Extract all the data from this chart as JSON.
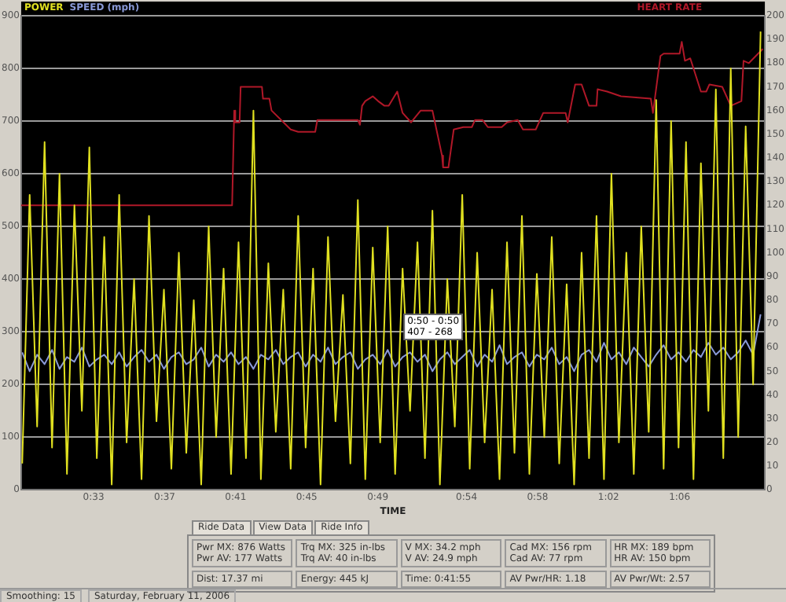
{
  "chart_data": {
    "type": "line",
    "xlabel": "TIME",
    "x": [
      0.483,
      0.49,
      0.497,
      0.504,
      0.511,
      0.518,
      0.525,
      0.532,
      0.539,
      0.546,
      0.553,
      0.56,
      0.567,
      0.574,
      0.581,
      0.588,
      0.595,
      0.602,
      0.609,
      0.616,
      0.623,
      0.63,
      0.637,
      0.644,
      0.651,
      0.658,
      0.665,
      0.672,
      0.679,
      0.686,
      0.693,
      0.7,
      0.707,
      0.714,
      0.721,
      0.728,
      0.735,
      0.742,
      0.749,
      0.756,
      0.763,
      0.77,
      0.777,
      0.784,
      0.791,
      0.798,
      0.805,
      0.812,
      0.819,
      0.826,
      0.833,
      0.84,
      0.847,
      0.854,
      0.861,
      0.868,
      0.875,
      0.882,
      0.889,
      0.896,
      0.903,
      0.91,
      0.917,
      0.924,
      0.931,
      0.938,
      0.945,
      0.952,
      0.959,
      0.966,
      0.973,
      0.98,
      0.987,
      0.994,
      1.001,
      1.008,
      1.015,
      1.022,
      1.029,
      1.036,
      1.043,
      1.05,
      1.057,
      1.064,
      1.071,
      1.078,
      1.085,
      1.092,
      1.099,
      1.106,
      1.113,
      1.12,
      1.127,
      1.134,
      1.141,
      1.148,
      1.155,
      1.162,
      1.169,
      1.176
    ],
    "series": [
      {
        "name": "POWER",
        "color": "#e0e020",
        "values": [
          50,
          560,
          120,
          660,
          80,
          600,
          30,
          540,
          150,
          650,
          60,
          480,
          10,
          560,
          90,
          400,
          20,
          520,
          130,
          380,
          40,
          450,
          70,
          360,
          10,
          500,
          100,
          420,
          30,
          470,
          60,
          720,
          20,
          430,
          110,
          380,
          40,
          520,
          80,
          420,
          10,
          480,
          130,
          370,
          50,
          550,
          20,
          460,
          90,
          500,
          30,
          420,
          150,
          470,
          60,
          530,
          10,
          400,
          120,
          560,
          40,
          450,
          90,
          380,
          20,
          470,
          70,
          520,
          30,
          410,
          100,
          480,
          50,
          390,
          10,
          450,
          60,
          520,
          20,
          600,
          90,
          450,
          30,
          500,
          110,
          740,
          40,
          700,
          80,
          660,
          20,
          620,
          150,
          760,
          60,
          800,
          100,
          690,
          200,
          870
        ]
      },
      {
        "name": "SPEED (mph)",
        "color": "#8a9ad8",
        "axis": "y2",
        "values": [
          58,
          50,
          57,
          53,
          59,
          51,
          56,
          54,
          60,
          52,
          55,
          57,
          53,
          58,
          52,
          56,
          59,
          54,
          57,
          51,
          56,
          58,
          53,
          55,
          60,
          52,
          57,
          54,
          58,
          53,
          56,
          51,
          57,
          55,
          59,
          53,
          56,
          58,
          52,
          57,
          54,
          60,
          53,
          56,
          58,
          51,
          55,
          57,
          53,
          59,
          52,
          56,
          58,
          54,
          57,
          50,
          55,
          58,
          53,
          56,
          59,
          52,
          57,
          54,
          61,
          53,
          56,
          58,
          52,
          57,
          55,
          60,
          53,
          56,
          50,
          57,
          59,
          54,
          62,
          55,
          58,
          53,
          60,
          56,
          52,
          57,
          61,
          55,
          58,
          54,
          59,
          56,
          62,
          57,
          60,
          55,
          58,
          63,
          57,
          74
        ]
      },
      {
        "name": "HEART RATE",
        "color": "#b01828",
        "axis": "y2",
        "x": [
          0.482,
          0.68,
          0.682,
          0.683,
          0.687,
          0.688,
          0.708,
          0.709,
          0.715,
          0.717,
          0.735,
          0.742,
          0.758,
          0.76,
          0.798,
          0.8,
          0.802,
          0.805,
          0.812,
          0.817,
          0.823,
          0.827,
          0.835,
          0.84,
          0.848,
          0.857,
          0.868,
          0.877,
          0.878,
          0.883,
          0.888,
          0.897,
          0.905,
          0.908,
          0.915,
          0.92,
          0.933,
          0.938,
          0.948,
          0.953,
          0.965,
          0.972,
          0.993,
          0.995,
          1.002,
          1.008,
          1.015,
          1.022,
          1.023,
          1.032,
          1.045,
          1.073,
          1.075,
          1.082,
          1.085,
          1.1,
          1.102,
          1.105,
          1.11,
          1.12,
          1.125,
          1.128,
          1.14,
          1.148,
          1.158,
          1.16,
          1.165,
          1.178
        ],
        "values": [
          120,
          120,
          160,
          155,
          155,
          170,
          170,
          165,
          165,
          160,
          152,
          151,
          151,
          156,
          156,
          154,
          162,
          164,
          166,
          164,
          162,
          162,
          168,
          159,
          155,
          160,
          160,
          141,
          136,
          136,
          152,
          153,
          153,
          156,
          156,
          153,
          153,
          155,
          156,
          152,
          152,
          159,
          159,
          155,
          171,
          171,
          162,
          162,
          169,
          168,
          166,
          165,
          159,
          183,
          184,
          184,
          189,
          181,
          182,
          168,
          168,
          171,
          170,
          162,
          164,
          181,
          180,
          186
        ]
      }
    ],
    "xlim": [
      0.482,
      1.18
    ],
    "xticks": [
      {
        "value": 0.55,
        "label": "0:33"
      },
      {
        "value": 0.6167,
        "label": "0:37"
      },
      {
        "value": 0.6833,
        "label": "0:41"
      },
      {
        "value": 0.75,
        "label": "0:45"
      },
      {
        "value": 0.8167,
        "label": "0:49"
      },
      {
        "value": 0.9,
        "label": "0:54"
      },
      {
        "value": 0.9667,
        "label": "0:58"
      },
      {
        "value": 1.0333,
        "label": "1:02"
      },
      {
        "value": 1.1,
        "label": "1:06"
      }
    ],
    "ylim": [
      0,
      900
    ],
    "yticks": [
      0,
      100,
      200,
      300,
      400,
      500,
      600,
      700,
      800,
      900
    ],
    "y2lim": [
      0,
      200
    ],
    "y2ticks": [
      0,
      10,
      20,
      30,
      40,
      50,
      60,
      70,
      80,
      90,
      100,
      110,
      120,
      130,
      140,
      150,
      160,
      170,
      180,
      190,
      200
    ],
    "grid": "y",
    "legend": "top",
    "annotations": [
      "0:50 - 0:50\n407 - 268",
      "Ride Data",
      "View Data",
      "Ride Info",
      "Pwr MX: 876 Watts",
      "Pwr AV: 177 Watts",
      "Trq MX: 325 in-lbs",
      "Trq AV: 40 in-lbs",
      "V MX: 34.2 mph",
      "V AV: 24.9 mph",
      "Cad MX: 156 rpm",
      "Cad AV: 77 rpm",
      "HR MX: 189 bpm",
      "HR AV: 150 bpm",
      "Dist: 17.37 mi",
      "Energy: 445 kJ",
      "Time: 0:41:55",
      "AV Pwr/HR: 1.18",
      "AV Pwr/Wt: 2.57",
      "Saturday, February 11, 2006",
      "Smoothing: 15"
    ]
  }
}
